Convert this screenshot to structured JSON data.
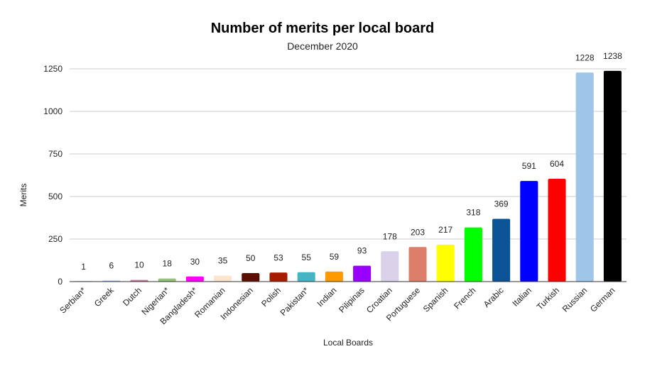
{
  "chart_data": {
    "type": "bar",
    "title": "Number of merits per local board",
    "subtitle": "December 2020",
    "xlabel": "Local Boards",
    "ylabel": "Merits",
    "ylim": [
      0,
      1250
    ],
    "yticks": [
      "0",
      "250",
      "500",
      "750",
      "1000",
      "1250"
    ],
    "grid": true,
    "legend": "none",
    "categories": [
      "Serbian*",
      "Greek",
      "Dutch",
      "Nigerian*",
      "Bangladesh*",
      "Romanian",
      "Indonesian",
      "Polish",
      "Pakistan*",
      "Indian",
      "Pilipinas",
      "Croatian",
      "Portuguese",
      "Spanish",
      "French",
      "Arabic",
      "Italian",
      "Turkish",
      "Russian",
      "German"
    ],
    "values": [
      1,
      6,
      10,
      18,
      30,
      35,
      50,
      53,
      55,
      59,
      93,
      178,
      203,
      217,
      318,
      369,
      591,
      604,
      1228,
      1238
    ],
    "value_labels": [
      "1",
      "6",
      "10",
      "18",
      "30",
      "35",
      "50",
      "53",
      "55",
      "59",
      "93",
      "178",
      "203",
      "217",
      "318",
      "369",
      "591",
      "604",
      "1228",
      "1238"
    ],
    "colors": [
      "#4a86e8",
      "#a4c2f4",
      "#c27ba0",
      "#93c47d",
      "#ff00ff",
      "#fce5cd",
      "#5b0f00",
      "#a61c00",
      "#45b5c4",
      "#ff9900",
      "#9900ff",
      "#d9d2e9",
      "#dd7e6b",
      "#ffff00",
      "#00ff00",
      "#0b5394",
      "#0000ff",
      "#ff0000",
      "#9fc5e8",
      "#000000"
    ]
  }
}
